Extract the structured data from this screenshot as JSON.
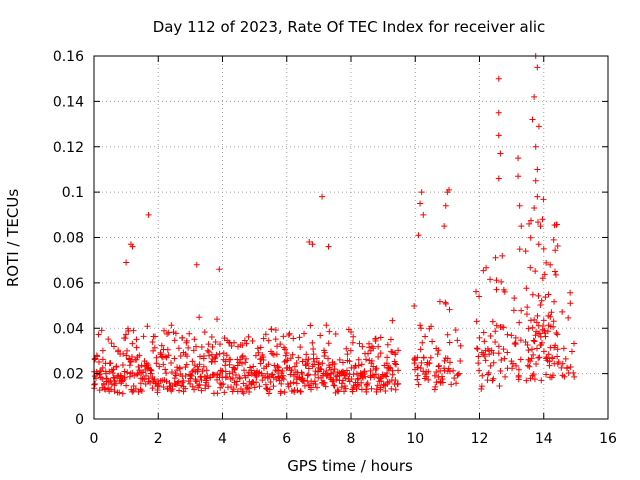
{
  "chart_data": {
    "type": "scatter",
    "title": "Day 112 of 2023, Rate Of TEC Index for receiver alic",
    "xlabel": "GPS time / hours",
    "ylabel": "ROTI / TECUs",
    "xlim": [
      0,
      16
    ],
    "ylim": [
      0,
      0.16
    ],
    "grid": true,
    "x_ticks": [
      0,
      2,
      4,
      6,
      8,
      10,
      12,
      14,
      16
    ],
    "y_ticks": [
      0,
      0.02,
      0.04,
      0.06,
      0.08,
      0.1,
      0.12,
      0.14,
      0.16
    ],
    "x_tick_labels": [
      "0",
      "2",
      "4",
      "6",
      "8",
      "10",
      "12",
      "14",
      "16"
    ],
    "y_tick_labels": [
      "0",
      "0.02",
      "0.04",
      "0.06",
      "0.08",
      "0.1",
      "0.12",
      "0.14",
      "0.16"
    ],
    "marker": "+",
    "color": "#ff0000",
    "series": [
      {
        "name": "ROTI",
        "segments": [
          {
            "start": 0.0,
            "end": 9.45,
            "step": 0.05,
            "base": 0.016,
            "spread": 0.01,
            "per_step": 4
          },
          {
            "start": 9.95,
            "end": 10.5,
            "step": 0.05,
            "base": 0.02,
            "spread": 0.015,
            "per_step": 3
          },
          {
            "start": 10.6,
            "end": 11.1,
            "step": 0.05,
            "base": 0.02,
            "spread": 0.015,
            "per_step": 3
          },
          {
            "start": 11.2,
            "end": 11.4,
            "step": 0.05,
            "base": 0.018,
            "spread": 0.01,
            "per_step": 2
          },
          {
            "start": 11.9,
            "end": 12.85,
            "step": 0.05,
            "base": 0.022,
            "spread": 0.018,
            "per_step": 3
          },
          {
            "start": 13.0,
            "end": 13.3,
            "step": 0.05,
            "base": 0.025,
            "spread": 0.02,
            "per_step": 3
          },
          {
            "start": 13.45,
            "end": 14.45,
            "step": 0.04,
            "base": 0.028,
            "spread": 0.025,
            "per_step": 4
          },
          {
            "start": 14.55,
            "end": 14.95,
            "step": 0.05,
            "base": 0.022,
            "spread": 0.015,
            "per_step": 2
          }
        ],
        "outliers": [
          [
            1.7,
            0.09
          ],
          [
            7.1,
            0.098
          ],
          [
            1.15,
            0.077
          ],
          [
            1.2,
            0.076
          ],
          [
            6.7,
            0.078
          ],
          [
            6.8,
            0.077
          ],
          [
            7.3,
            0.076
          ],
          [
            3.9,
            0.066
          ],
          [
            3.2,
            0.068
          ],
          [
            1.0,
            0.069
          ],
          [
            10.2,
            0.1
          ],
          [
            10.15,
            0.095
          ],
          [
            10.25,
            0.09
          ],
          [
            10.1,
            0.081
          ],
          [
            11.0,
            0.1
          ],
          [
            11.05,
            0.101
          ],
          [
            10.95,
            0.094
          ],
          [
            10.9,
            0.085
          ],
          [
            12.6,
            0.15
          ],
          [
            12.6,
            0.135
          ],
          [
            12.6,
            0.125
          ],
          [
            12.65,
            0.117
          ],
          [
            12.6,
            0.106
          ],
          [
            13.2,
            0.115
          ],
          [
            13.2,
            0.107
          ],
          [
            13.25,
            0.094
          ],
          [
            13.3,
            0.085
          ],
          [
            13.75,
            0.16
          ],
          [
            13.8,
            0.155
          ],
          [
            13.7,
            0.142
          ],
          [
            13.65,
            0.132
          ],
          [
            13.85,
            0.129
          ],
          [
            13.75,
            0.12
          ],
          [
            13.8,
            0.11
          ],
          [
            13.75,
            0.105
          ],
          [
            13.8,
            0.098
          ],
          [
            13.7,
            0.093
          ],
          [
            13.9,
            0.085
          ],
          [
            14.0,
            0.075
          ],
          [
            14.2,
            0.068
          ],
          [
            14.35,
            0.065
          ]
        ]
      }
    ]
  }
}
